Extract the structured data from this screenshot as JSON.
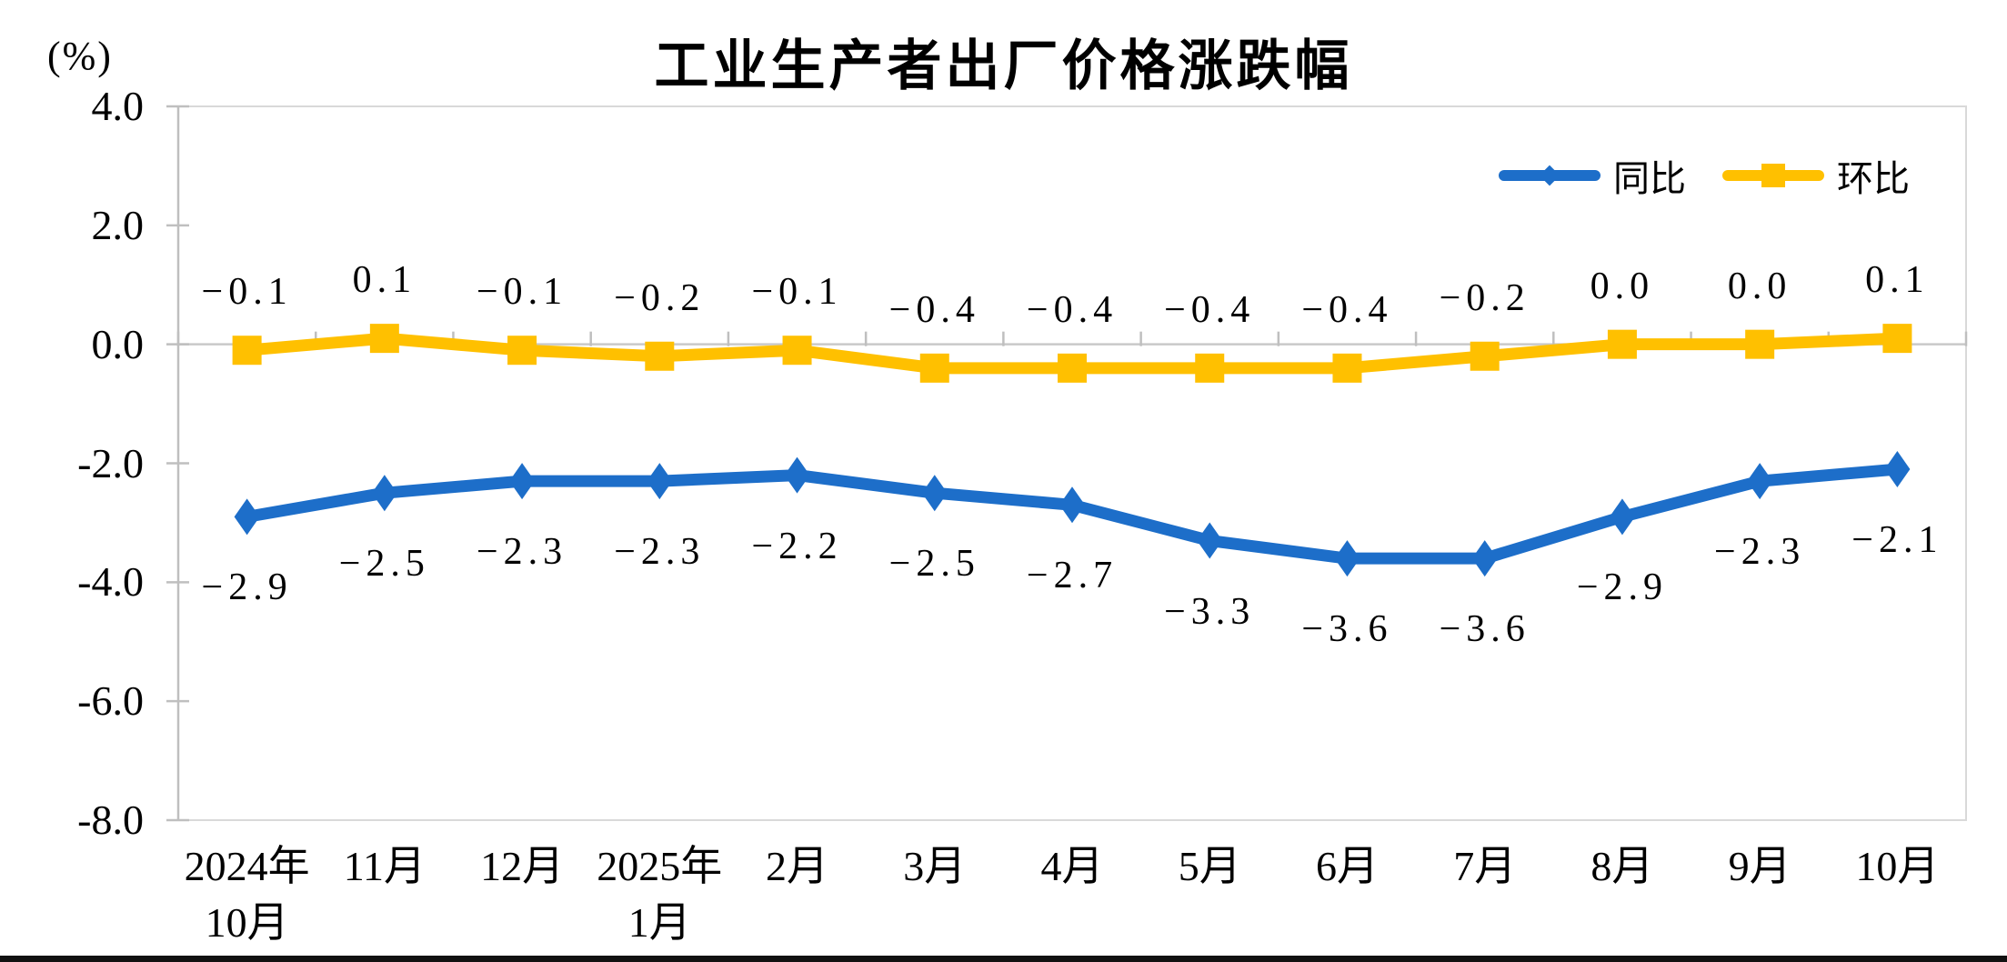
{
  "chart_data": {
    "type": "line",
    "title": "工业生产者出厂价格涨跌幅",
    "unit_label": "(%)",
    "categories": [
      "2024年\n10月",
      "11月",
      "12月",
      "2025年\n1月",
      "2月",
      "3月",
      "4月",
      "5月",
      "6月",
      "7月",
      "8月",
      "9月",
      "10月"
    ],
    "ylim": [
      -8.0,
      4.0
    ],
    "ytick_values": [
      4.0,
      2.0,
      0.0,
      -2.0,
      -4.0,
      -6.0,
      -8.0
    ],
    "ytick_labels": [
      "4.0",
      "2.0",
      "0.0",
      "-2.0",
      "-4.0",
      "-6.0",
      "-8.0"
    ],
    "grid": "zero-line-only",
    "legend_position": "top-right-inside",
    "series": [
      {
        "name": "同比",
        "color": "#1D6EC9",
        "marker": "diamond",
        "label_position": "below",
        "values": [
          -2.9,
          -2.5,
          -2.3,
          -2.3,
          -2.2,
          -2.5,
          -2.7,
          -3.3,
          -3.6,
          -3.6,
          -2.9,
          -2.3,
          -2.1
        ],
        "labels": [
          "−2.9",
          "−2.5",
          "−2.3",
          "−2.3",
          "−2.2",
          "−2.5",
          "−2.7",
          "−3.3",
          "−3.6",
          "−3.6",
          "−2.9",
          "−2.3",
          "−2.1"
        ]
      },
      {
        "name": "环比",
        "color": "#FFC000",
        "marker": "square",
        "label_position": "above",
        "values": [
          -0.1,
          0.1,
          -0.1,
          -0.2,
          -0.1,
          -0.4,
          -0.4,
          -0.4,
          -0.4,
          -0.2,
          0.0,
          0.0,
          0.1
        ],
        "labels": [
          "−0.1",
          "0.1",
          "−0.1",
          "−0.2",
          "−0.1",
          "−0.4",
          "−0.4",
          "−0.4",
          "−0.4",
          "−0.2",
          "0.0",
          "0.0",
          "0.1"
        ]
      }
    ],
    "colors": {
      "series_yoy": "#1D6EC9",
      "series_mom": "#FFC000",
      "zero_line": "#C9C9C9",
      "plot_border": "#D9D9D9",
      "axis_ticks": "#BFBFBF",
      "text": "#000000"
    }
  }
}
